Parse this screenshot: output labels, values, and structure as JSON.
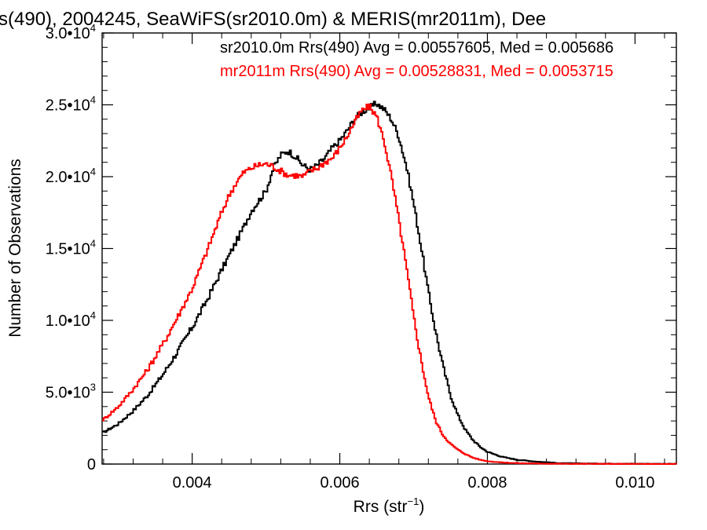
{
  "chart_data": {
    "type": "line",
    "title": "s(490), 2004245, SeaWiFS(sr2010.0m) & MERIS(mr2011m), Dee",
    "xlabel_main": "Rrs (str",
    "xlabel_sup": "−1",
    "xlabel_close": ")",
    "ylabel": "Number of Observations",
    "xlim": [
      0.00278,
      0.01056
    ],
    "ylim": [
      0,
      30000
    ],
    "grid": false,
    "legend_position": "top-right",
    "x_tick_values": [
      0.004,
      0.006,
      0.008,
      0.01
    ],
    "x_tick_labels": [
      "0.004",
      "0.006",
      "0.008",
      "0.010"
    ],
    "y_ticks": [
      {
        "value": 0,
        "mantissa": "0",
        "exponent": ""
      },
      {
        "value": 5000,
        "mantissa": "5.0•10",
        "exponent": "3"
      },
      {
        "value": 10000,
        "mantissa": "1.0•10",
        "exponent": "4"
      },
      {
        "value": 15000,
        "mantissa": "1.5•10",
        "exponent": "4"
      },
      {
        "value": 20000,
        "mantissa": "2.0•10",
        "exponent": "4"
      },
      {
        "value": 25000,
        "mantissa": "2.5•10",
        "exponent": "4"
      },
      {
        "value": 30000,
        "mantissa": "3.0•10",
        "exponent": "4"
      }
    ],
    "series": [
      {
        "name": "sr2010.0m",
        "legend_text": "sr2010.0m Rrs(490) Avg = 0.00557605, Med = 0.005686",
        "color": "#000000",
        "x": [
          0.0028,
          0.003,
          0.0032,
          0.0034,
          0.0036,
          0.0038,
          0.004,
          0.0042,
          0.0044,
          0.0046,
          0.0047,
          0.0048,
          0.0049,
          0.005,
          0.0051,
          0.0052,
          0.0053,
          0.0054,
          0.0055,
          0.0056,
          0.0057,
          0.0058,
          0.0059,
          0.006,
          0.0061,
          0.0062,
          0.0063,
          0.0064,
          0.0065,
          0.0066,
          0.0067,
          0.0068,
          0.0069,
          0.007,
          0.0071,
          0.0072,
          0.0073,
          0.0074,
          0.0075,
          0.0076,
          0.0077,
          0.0078,
          0.0079,
          0.008,
          0.0082,
          0.0084,
          0.0086,
          0.0088,
          0.009,
          0.0095,
          0.01,
          0.0105
        ],
        "y": [
          2200,
          2800,
          3700,
          4800,
          6200,
          7800,
          9500,
          11400,
          13500,
          15500,
          16500,
          17600,
          18300,
          19000,
          20600,
          21500,
          21800,
          21400,
          20800,
          20500,
          20800,
          21300,
          22000,
          22500,
          23200,
          24000,
          24500,
          24800,
          25100,
          24700,
          24000,
          22800,
          20800,
          18200,
          15200,
          12000,
          9200,
          6800,
          4800,
          3400,
          2400,
          1700,
          1200,
          850,
          500,
          300,
          200,
          120,
          60,
          30,
          20,
          10
        ]
      },
      {
        "name": "mr2011m",
        "legend_text": "mr2011m Rrs(490) Avg = 0.00528831, Med = 0.0053715",
        "color": "#ff0000",
        "x": [
          0.0028,
          0.003,
          0.0032,
          0.0034,
          0.0036,
          0.0038,
          0.004,
          0.0042,
          0.0044,
          0.0045,
          0.0046,
          0.0047,
          0.0048,
          0.0049,
          0.005,
          0.0051,
          0.0052,
          0.0053,
          0.0054,
          0.0055,
          0.0056,
          0.0057,
          0.0058,
          0.0059,
          0.006,
          0.0061,
          0.0062,
          0.0063,
          0.0064,
          0.0065,
          0.0066,
          0.0067,
          0.0068,
          0.0069,
          0.007,
          0.0071,
          0.0072,
          0.0073,
          0.0074,
          0.0075,
          0.0076,
          0.0077,
          0.0078,
          0.0079,
          0.008,
          0.0082,
          0.0084,
          0.0086,
          0.009,
          0.0095,
          0.01,
          0.0105
        ],
        "y": [
          3100,
          4000,
          5200,
          6600,
          8300,
          10200,
          12200,
          14800,
          17500,
          18700,
          19600,
          20300,
          20600,
          20800,
          20900,
          20700,
          20400,
          20100,
          20100,
          20000,
          20400,
          20600,
          21000,
          21300,
          22000,
          22800,
          23800,
          24600,
          24900,
          24200,
          22500,
          20000,
          17000,
          13800,
          10300,
          7300,
          4700,
          3000,
          2000,
          1400,
          1000,
          700,
          450,
          300,
          200,
          110,
          60,
          40,
          20,
          10,
          5,
          2
        ]
      }
    ]
  }
}
